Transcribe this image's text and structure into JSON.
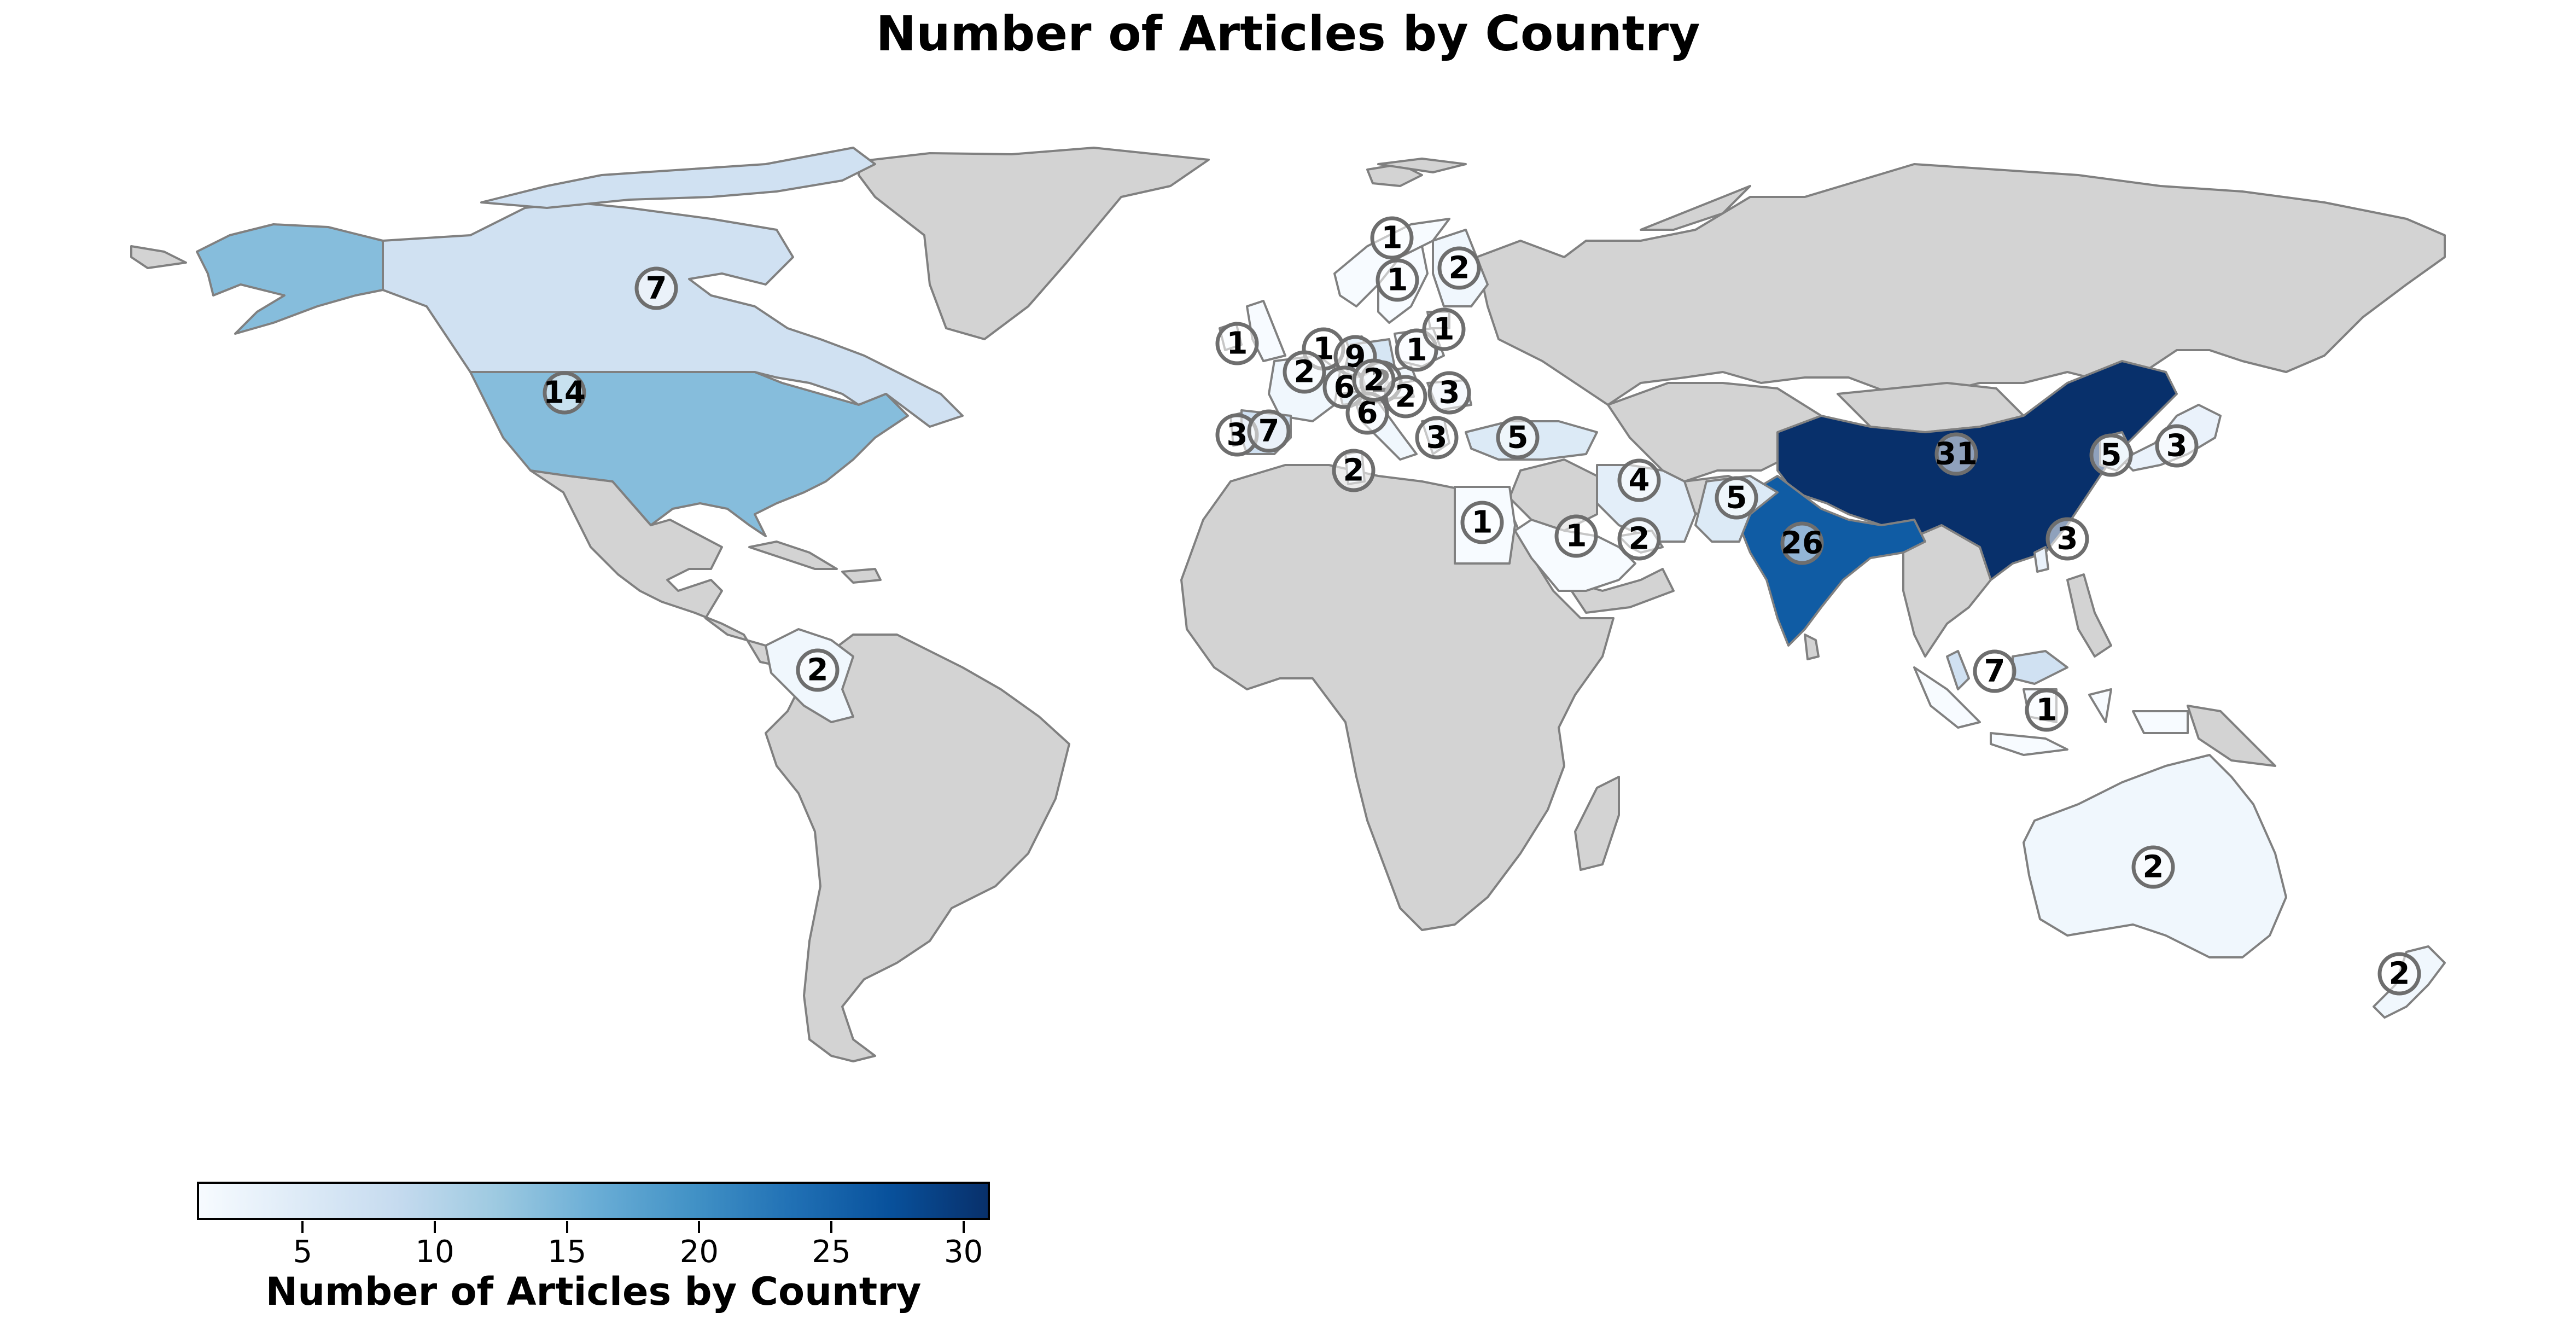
{
  "title": "Number of Articles by Country",
  "colorbar": {
    "label": "Number of Articles by Country",
    "min": 1,
    "max": 31,
    "ticks": [
      5,
      10,
      15,
      20,
      25,
      30
    ],
    "colormap": "Blues",
    "colors": [
      "#f7fbff",
      "#deebf7",
      "#c6dbef",
      "#9ecae1",
      "#6baed6",
      "#4292c6",
      "#2171b5",
      "#08519c",
      "#08306b"
    ]
  },
  "no_data_color": "#d3d3d3",
  "regions": [
    {
      "name": "United States",
      "value": 14
    },
    {
      "name": "Canada",
      "value": 7
    },
    {
      "name": "Colombia",
      "value": 2
    },
    {
      "name": "Australia",
      "value": 2
    },
    {
      "name": "New Zealand",
      "value": 2
    },
    {
      "name": "China",
      "value": 31
    },
    {
      "name": "India",
      "value": 26
    },
    {
      "name": "Japan",
      "value": 3
    },
    {
      "name": "South Korea",
      "value": 5
    },
    {
      "name": "Taiwan",
      "value": 3
    },
    {
      "name": "Malaysia",
      "value": 7
    },
    {
      "name": "Indonesia",
      "value": 1
    },
    {
      "name": "Pakistan",
      "value": 5
    },
    {
      "name": "Iran",
      "value": 4
    },
    {
      "name": "Saudi Arabia",
      "value": 1
    },
    {
      "name": "United Arab Emirates",
      "value": 2
    },
    {
      "name": "Egypt",
      "value": 1
    },
    {
      "name": "Turkey",
      "value": 5
    },
    {
      "name": "Norway",
      "value": 1
    },
    {
      "name": "Sweden",
      "value": 1
    },
    {
      "name": "Finland",
      "value": 2
    },
    {
      "name": "Ireland",
      "value": 1
    },
    {
      "name": "United Kingdom",
      "value": 1
    },
    {
      "name": "Netherlands",
      "value": 9
    },
    {
      "name": "Poland",
      "value": 1
    },
    {
      "name": "Lithuania",
      "value": 1
    },
    {
      "name": "France",
      "value": 2
    },
    {
      "name": "Germany",
      "value": 6
    },
    {
      "name": "Czech Republic",
      "value": 2
    },
    {
      "name": "Switzerland",
      "value": 6
    },
    {
      "name": "Austria",
      "value": 2
    },
    {
      "name": "Romania",
      "value": 3
    },
    {
      "name": "Greece",
      "value": 3
    },
    {
      "name": "Portugal",
      "value": 3
    },
    {
      "name": "Spain",
      "value": 7
    },
    {
      "name": "Italy",
      "value": 2
    },
    {
      "name": "Tunisia",
      "value": 2
    }
  ]
}
